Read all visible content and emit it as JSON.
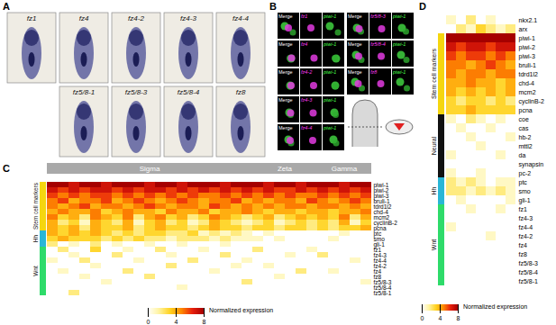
{
  "panels": {
    "A": {
      "label": "A",
      "rows": [
        [
          "fz1",
          "fz4",
          "fz4-2",
          "fz4-3",
          "fz4-4"
        ],
        [
          "fz5/8-1",
          "fz5/8-3",
          "fz5/8-4",
          "fz8"
        ]
      ]
    },
    "B": {
      "label": "B",
      "columns": [
        [
          [
            "Merge",
            "fz1",
            "piwi-1"
          ],
          [
            "Merge",
            "fz4",
            "piwi-1"
          ],
          [
            "Merge",
            "fz4-2",
            "piwi-1"
          ],
          [
            "Merge",
            "fz4-3",
            "piwi-1"
          ],
          [
            "Merge",
            "fz4-4",
            "piwi-1"
          ]
        ],
        [
          [
            "Merge",
            "fz5/8-3",
            "piwi-1"
          ],
          [
            "Merge",
            "fz5/8-4",
            "piwi-1"
          ],
          [
            "Merge",
            "fz8",
            "piwi-1"
          ]
        ]
      ]
    }
  },
  "chart_data": [
    {
      "type": "heatmap",
      "panel": "C",
      "tick_labels": "y",
      "column_groups": [
        {
          "name": "Sigma",
          "count": 19
        },
        {
          "name": "Zeta",
          "count": 6
        },
        {
          "name": "Gamma",
          "count": 5
        }
      ],
      "row_groups": [
        {
          "name": "Stem cell markers",
          "color": "#f5d60f",
          "from": "piwi-1",
          "to": "pcna"
        },
        {
          "name": "Hh",
          "color": "#29b6d6",
          "from": "ptc",
          "to": "gli-1"
        },
        {
          "name": "Wnt",
          "color": "#2edb6a",
          "from": "fz1",
          "to": "fz5/8-1"
        }
      ],
      "rows": [
        "piwi-1",
        "piwi-2",
        "piwi-3",
        "bruli-1",
        "tdrd1l2",
        "chd-4",
        "mcm2",
        "cyclinB-2",
        "pcna",
        "ptc",
        "smo",
        "gli-1",
        "fz1",
        "fz4-3",
        "fz4-4",
        "fz4-2",
        "fz4",
        "fz8",
        "fz5/8-3",
        "fz5/8-4",
        "fz5/8-1"
      ],
      "cells": [
        [
          8,
          8,
          7,
          8,
          8,
          7,
          8,
          8,
          8,
          7,
          8,
          8,
          7,
          8,
          8,
          8,
          7,
          8,
          8,
          8,
          7,
          8,
          8,
          7,
          8,
          8,
          8,
          7,
          8,
          8
        ],
        [
          7,
          6,
          7,
          6,
          7,
          7,
          6,
          7,
          6,
          7,
          7,
          6,
          7,
          6,
          7,
          6,
          7,
          6,
          7,
          6,
          7,
          6,
          6,
          7,
          6,
          7,
          6,
          7,
          6,
          7
        ],
        [
          6,
          5,
          6,
          5,
          6,
          6,
          5,
          6,
          5,
          6,
          5,
          6,
          5,
          6,
          5,
          5,
          6,
          5,
          6,
          5,
          6,
          5,
          6,
          5,
          5,
          6,
          5,
          6,
          5,
          6
        ],
        [
          5,
          6,
          4,
          5,
          5,
          6,
          4,
          5,
          6,
          5,
          4,
          5,
          6,
          5,
          4,
          5,
          5,
          6,
          4,
          5,
          4,
          5,
          5,
          4,
          6,
          5,
          4,
          5,
          6,
          5
        ],
        [
          5,
          4,
          5,
          6,
          4,
          5,
          5,
          4,
          5,
          6,
          5,
          4,
          5,
          5,
          4,
          6,
          5,
          4,
          5,
          4,
          5,
          4,
          5,
          5,
          4,
          5,
          5,
          4,
          5,
          4
        ],
        [
          4,
          5,
          4,
          4,
          5,
          3,
          4,
          5,
          4,
          4,
          3,
          5,
          4,
          4,
          5,
          3,
          4,
          4,
          5,
          4,
          3,
          4,
          4,
          3,
          4,
          4,
          3,
          4,
          4,
          5
        ],
        [
          5,
          3,
          4,
          2,
          5,
          4,
          3,
          5,
          2,
          4,
          5,
          3,
          4,
          2,
          3,
          5,
          4,
          3,
          2,
          3,
          4,
          2,
          3,
          4,
          3,
          4,
          3,
          5,
          2,
          4
        ],
        [
          4,
          2,
          3,
          1,
          4,
          3,
          2,
          4,
          1,
          3,
          4,
          2,
          3,
          1,
          2,
          4,
          3,
          2,
          1,
          2,
          3,
          1,
          2,
          3,
          2,
          3,
          2,
          4,
          1,
          3
        ],
        [
          4,
          3,
          4,
          2,
          4,
          3,
          3,
          4,
          2,
          3,
          4,
          3,
          3,
          2,
          3,
          4,
          3,
          3,
          2,
          3,
          3,
          2,
          3,
          3,
          2,
          3,
          2,
          3,
          3,
          4
        ],
        [
          4,
          3,
          4,
          3,
          4,
          3,
          2,
          3,
          2,
          3,
          3,
          2,
          2,
          3,
          1,
          2,
          1,
          2,
          1,
          0,
          1,
          0,
          0,
          0,
          0,
          0,
          0,
          1,
          0,
          0
        ],
        [
          3,
          4,
          3,
          3,
          3,
          2,
          3,
          2,
          3,
          2,
          2,
          1,
          2,
          2,
          2,
          1,
          2,
          1,
          1,
          1,
          0,
          1,
          0,
          0,
          0,
          0,
          1,
          0,
          0,
          0
        ],
        [
          2,
          0,
          1,
          0,
          2,
          0,
          1,
          0,
          0,
          1,
          0,
          0,
          1,
          0,
          0,
          0,
          1,
          0,
          0,
          0,
          0,
          0,
          0,
          0,
          0,
          0,
          0,
          0,
          0,
          0
        ],
        [
          0,
          2,
          0,
          0,
          3,
          0,
          0,
          1,
          0,
          0,
          2,
          0,
          0,
          0,
          1,
          0,
          0,
          0,
          0,
          2,
          0,
          0,
          0,
          0,
          1,
          0,
          0,
          0,
          0,
          0
        ],
        [
          0,
          0,
          1,
          0,
          0,
          0,
          2,
          0,
          0,
          0,
          0,
          1,
          0,
          0,
          0,
          0,
          2,
          0,
          0,
          0,
          0,
          0,
          1,
          0,
          0,
          2,
          0,
          0,
          0,
          0
        ],
        [
          1,
          0,
          0,
          2,
          0,
          0,
          0,
          0,
          1,
          0,
          0,
          0,
          0,
          2,
          0,
          0,
          0,
          0,
          1,
          0,
          0,
          0,
          0,
          0,
          0,
          0,
          0,
          0,
          1,
          0
        ],
        [
          0,
          0,
          0,
          0,
          1,
          0,
          0,
          0,
          0,
          0,
          0,
          2,
          0,
          0,
          0,
          0,
          0,
          1,
          0,
          0,
          1,
          0,
          0,
          0,
          0,
          0,
          0,
          0,
          0,
          0
        ],
        [
          0,
          1,
          0,
          0,
          0,
          0,
          0,
          2,
          0,
          0,
          0,
          0,
          0,
          0,
          0,
          1,
          0,
          0,
          0,
          0,
          0,
          0,
          0,
          2,
          0,
          0,
          1,
          0,
          0,
          0
        ],
        [
          0,
          0,
          0,
          1,
          0,
          0,
          0,
          0,
          0,
          2,
          0,
          0,
          0,
          0,
          0,
          0,
          0,
          0,
          0,
          0,
          0,
          1,
          0,
          0,
          0,
          0,
          0,
          0,
          0,
          0
        ],
        [
          0,
          0,
          0,
          0,
          0,
          1,
          0,
          0,
          0,
          0,
          0,
          0,
          0,
          0,
          0,
          0,
          0,
          0,
          2,
          0,
          0,
          0,
          0,
          0,
          0,
          0,
          0,
          0,
          0,
          1
        ],
        [
          0,
          0,
          0,
          0,
          0,
          0,
          0,
          0,
          0,
          0,
          0,
          0,
          1,
          0,
          0,
          0,
          0,
          0,
          0,
          0,
          0,
          0,
          0,
          0,
          0,
          0,
          0,
          0,
          0,
          0
        ],
        [
          0,
          0,
          2,
          0,
          0,
          0,
          0,
          0,
          0,
          0,
          0,
          0,
          0,
          0,
          0,
          0,
          0,
          0,
          0,
          0,
          0,
          0,
          0,
          0,
          0,
          0,
          0,
          0,
          0,
          0
        ]
      ],
      "colorbar": {
        "label": "Normalized expression",
        "range": [
          0,
          8
        ],
        "ticks": [
          0,
          4,
          8
        ]
      }
    },
    {
      "type": "heatmap",
      "panel": "D",
      "tick_labels": "y",
      "row_groups": [
        {
          "name": "Stem cell markers",
          "color": "#f5d60f",
          "from": "piwi-1",
          "to": "pcna"
        },
        {
          "name": "Neural",
          "color": "#111111",
          "from": "coe",
          "to": "pc-2"
        },
        {
          "name": "Hh",
          "color": "#29b6d6",
          "from": "ptc",
          "to": "gli-1"
        },
        {
          "name": "Wnt",
          "color": "#2edb6a",
          "from": "fz1",
          "to": "fz5/8-1"
        }
      ],
      "rows": [
        "nkx2.1",
        "arx",
        "piwi-1",
        "piwi-2",
        "piwi-3",
        "bruli-1",
        "tdrd1l2",
        "chd-4",
        "mcm2",
        "cyclinB-2",
        "pcna",
        "coe",
        "cas",
        "hb-2",
        "mttl2",
        "da",
        "synapsin",
        "pc-2",
        "ptc",
        "smo",
        "gli-1",
        "fz1",
        "fz4-3",
        "fz4-4",
        "fz4-2",
        "fz4",
        "fz8",
        "fz5/8-3",
        "fz5/8-4",
        "fz5/8-1"
      ],
      "cells": [
        [
          1,
          0,
          2,
          0,
          1,
          0,
          0
        ],
        [
          0,
          2,
          1,
          3,
          2,
          1,
          2
        ],
        [
          8,
          8,
          8,
          8,
          8,
          8,
          8
        ],
        [
          7,
          6,
          7,
          7,
          6,
          7,
          7
        ],
        [
          6,
          5,
          6,
          6,
          5,
          6,
          5
        ],
        [
          5,
          5,
          4,
          5,
          6,
          5,
          4
        ],
        [
          5,
          4,
          5,
          5,
          4,
          5,
          5
        ],
        [
          4,
          4,
          5,
          4,
          4,
          3,
          4
        ],
        [
          4,
          3,
          4,
          3,
          4,
          3,
          4
        ],
        [
          3,
          2,
          3,
          3,
          2,
          3,
          2
        ],
        [
          3,
          3,
          4,
          3,
          3,
          3,
          3
        ],
        [
          1,
          0,
          2,
          1,
          0,
          1,
          0
        ],
        [
          0,
          1,
          0,
          0,
          1,
          0,
          0
        ],
        [
          0,
          0,
          1,
          0,
          0,
          0,
          1
        ],
        [
          0,
          0,
          0,
          1,
          0,
          0,
          0
        ],
        [
          1,
          0,
          0,
          0,
          0,
          1,
          0
        ],
        [
          0,
          0,
          0,
          0,
          0,
          0,
          0
        ],
        [
          1,
          0,
          0,
          1,
          0,
          0,
          0
        ],
        [
          2,
          1,
          2,
          1,
          0,
          1,
          1
        ],
        [
          2,
          2,
          1,
          2,
          1,
          2,
          1
        ],
        [
          0,
          1,
          0,
          0,
          0,
          0,
          1
        ],
        [
          0,
          0,
          1,
          0,
          0,
          1,
          0
        ],
        [
          0,
          0,
          0,
          0,
          0,
          0,
          0
        ],
        [
          1,
          0,
          0,
          0,
          0,
          0,
          0
        ],
        [
          0,
          0,
          0,
          0,
          1,
          0,
          0
        ],
        [
          0,
          0,
          0,
          0,
          0,
          0,
          0
        ],
        [
          0,
          0,
          0,
          0,
          0,
          0,
          0
        ],
        [
          0,
          0,
          0,
          0,
          0,
          0,
          0
        ],
        [
          0,
          0,
          0,
          0,
          0,
          0,
          0
        ],
        [
          0,
          0,
          0,
          0,
          0,
          0,
          0
        ]
      ],
      "colorbar": {
        "label": "Normalized expression",
        "range": [
          0,
          8
        ],
        "ticks": [
          0,
          4,
          8
        ]
      }
    }
  ]
}
